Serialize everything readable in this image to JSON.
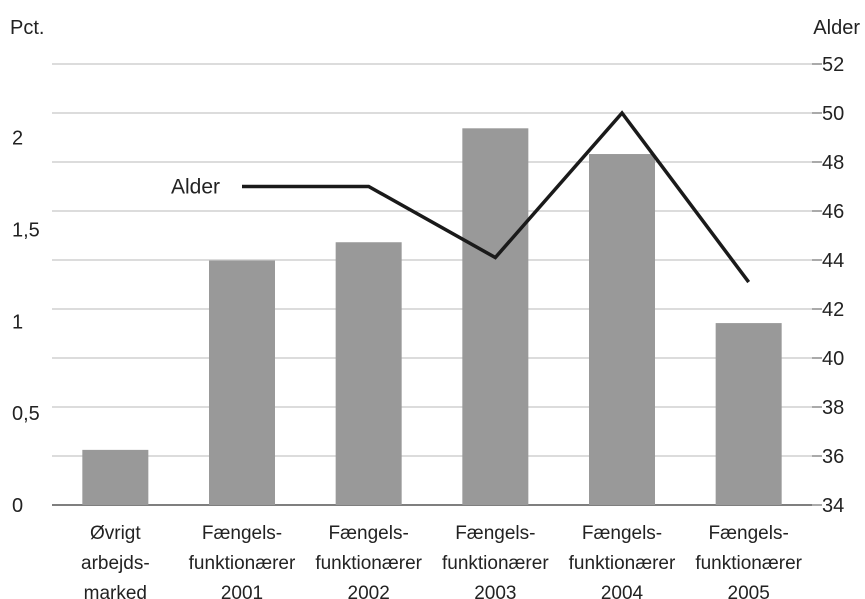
{
  "chart_data": {
    "type": "bar",
    "categories": [
      [
        "Øvrigt",
        "arbejds-",
        "marked"
      ],
      [
        "Fængels-",
        "funktionærer",
        "2001"
      ],
      [
        "Fængels-",
        "funktionærer",
        "2002"
      ],
      [
        "Fængels-",
        "funktionærer",
        "2003"
      ],
      [
        "Fængels-",
        "funktionærer",
        "2004"
      ],
      [
        "Fængels-",
        "funktionærer",
        "2005"
      ]
    ],
    "series": [
      {
        "type": "bar",
        "axis": "left",
        "values": [
          0.3,
          1.33,
          1.43,
          2.05,
          1.91,
          0.99
        ],
        "color": "#999999"
      },
      {
        "type": "line",
        "axis": "right",
        "name": "Alder",
        "values": [
          null,
          47,
          47,
          44.1,
          50,
          43.1
        ],
        "color": "#1a1a1a"
      }
    ],
    "ylabel_left": "Pct.",
    "ylabel_right": "Alder",
    "ylim_left": [
      0,
      2.4
    ],
    "ylim_right": [
      34,
      52
    ],
    "yticks_left": [
      "0",
      "0,5",
      "1",
      "1,5",
      "2"
    ],
    "yticks_left_values": [
      0,
      0.5,
      1,
      1.5,
      2
    ],
    "yticks_right": [
      "34",
      "36",
      "38",
      "40",
      "42",
      "44",
      "46",
      "48",
      "50",
      "52"
    ],
    "yticks_right_values": [
      34,
      36,
      38,
      40,
      42,
      44,
      46,
      48,
      50,
      52
    ],
    "grid": true,
    "legend": "none"
  }
}
